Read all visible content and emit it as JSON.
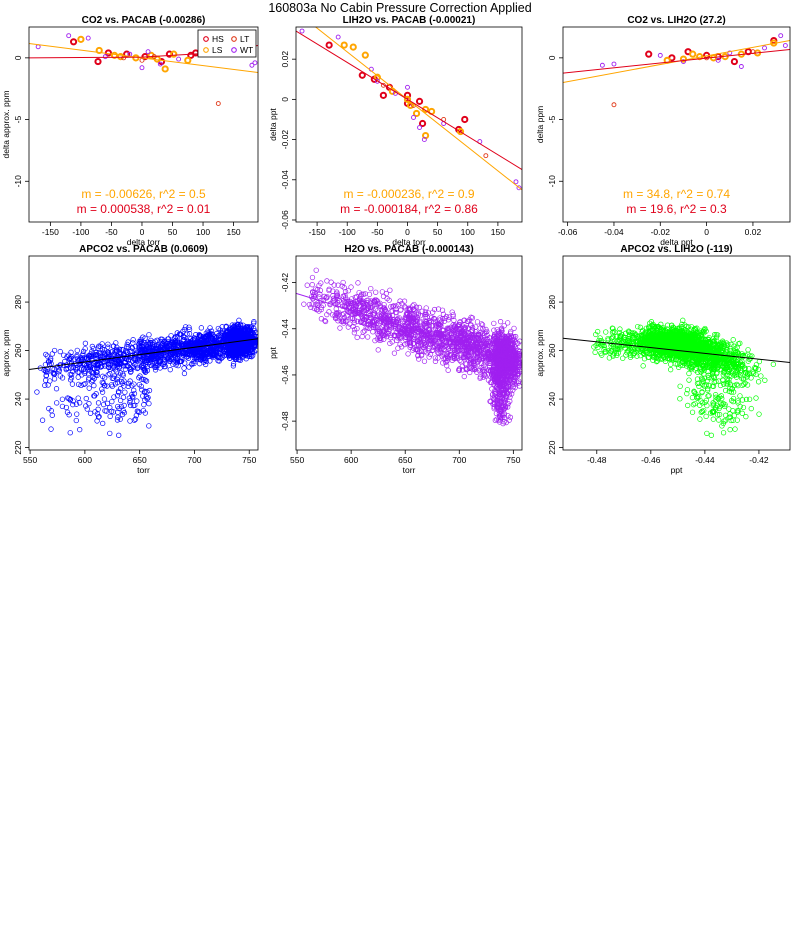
{
  "figure": {
    "title": "160803a   No Cabin Pressure Correction Applied"
  },
  "legend_entries": [
    {
      "label": "HS",
      "color": "#e0001a"
    },
    {
      "label": "LS",
      "color": "#ffa500"
    },
    {
      "label": "LT",
      "color": "#e03a1a"
    },
    {
      "label": "WT",
      "color": "#a020f0"
    }
  ],
  "colors": {
    "HS": "#e0001a",
    "LS": "#ffa500",
    "LT": "#e03a1a",
    "WT": "#a020f0",
    "fit_red": "#e0001a",
    "fit_orange": "#ffa500",
    "blue": "#0000ff",
    "purple": "#a020f0",
    "green": "#00ff00"
  },
  "chart_data": [
    {
      "type": "scatter",
      "title": "CO2 vs. PACAB (-0.00286)",
      "xlabel": "delta torr",
      "ylabel": "delta approx. ppm",
      "xlim": [
        -185,
        190
      ],
      "ylim": [
        -13.3,
        2.5
      ],
      "xticks": [
        -150,
        -100,
        -50,
        0,
        50,
        100,
        150
      ],
      "yticks": [
        0,
        -5,
        -10
      ],
      "legend": "top-right",
      "fit_lines": [
        {
          "color": "fit_orange",
          "x": [
            -185,
            190
          ],
          "y": [
            1.16,
            -1.19
          ]
        },
        {
          "color": "fit_red",
          "curve": true,
          "x": [
            -185,
            -100,
            0,
            100,
            190
          ],
          "y": [
            0.0,
            0.03,
            0.06,
            0.35,
            1.0
          ]
        }
      ],
      "annotations": [
        {
          "text": "m = -0.00626, r^2 = 0.5",
          "color": "fit_orange"
        },
        {
          "text": "m = 0.000538, r^2 = 0.01",
          "color": "fit_red"
        }
      ],
      "series": [
        {
          "name": "HS",
          "color": "HS",
          "bold": true,
          "points": [
            [
              -112,
              1.3
            ],
            [
              -55,
              0.4
            ],
            [
              -25,
              0.3
            ],
            [
              5,
              0.1
            ],
            [
              32,
              -0.3
            ],
            [
              45,
              0.3
            ],
            [
              80,
              0.2
            ],
            [
              88,
              0.4
            ],
            [
              -72,
              -0.3
            ]
          ]
        },
        {
          "name": "LS",
          "color": "LS",
          "bold": true,
          "points": [
            [
              -100,
              1.5
            ],
            [
              -70,
              0.6
            ],
            [
              -45,
              0.2
            ],
            [
              -35,
              0.1
            ],
            [
              -10,
              0.0
            ],
            [
              15,
              0.2
            ],
            [
              25,
              -0.1
            ],
            [
              38,
              -0.9
            ],
            [
              52,
              0.3
            ],
            [
              75,
              -0.2
            ]
          ]
        },
        {
          "name": "LT",
          "color": "LT",
          "bold": false,
          "points": [
            [
              -30,
              0.0
            ],
            [
              0,
              -0.2
            ],
            [
              125,
              -3.7
            ],
            [
              20,
              0.1
            ]
          ]
        },
        {
          "name": "WT",
          "color": "WT",
          "bold": false,
          "points": [
            [
              -170,
              0.9
            ],
            [
              -88,
              1.6
            ],
            [
              -120,
              1.8
            ],
            [
              -60,
              0.1
            ],
            [
              0,
              -0.8
            ],
            [
              30,
              -0.5
            ],
            [
              60,
              -0.1
            ],
            [
              100,
              0.4
            ],
            [
              180,
              -0.6
            ],
            [
              185,
              -0.4
            ],
            [
              -20,
              0.3
            ],
            [
              10,
              0.5
            ]
          ]
        }
      ]
    },
    {
      "type": "scatter",
      "title": "LIH2O vs. PACAB (-0.00021)",
      "xlabel": "delta torr",
      "ylabel": "delta ppt",
      "xlim": [
        -185,
        190
      ],
      "ylim": [
        -0.061,
        0.036
      ],
      "xticks": [
        -150,
        -100,
        -50,
        0,
        50,
        100,
        150
      ],
      "yticks": [
        0.02,
        0.0,
        -0.02,
        -0.04,
        -0.06
      ],
      "fit_lines": [
        {
          "color": "fit_orange",
          "x": [
            -160,
            190
          ],
          "y": [
            0.0378,
            -0.045
          ]
        },
        {
          "color": "fit_red",
          "x": [
            -185,
            190
          ],
          "y": [
            0.034,
            -0.0349
          ]
        }
      ],
      "annotations": [
        {
          "text": "m = -0.000236, r^2 = 0.9",
          "color": "fit_orange"
        },
        {
          "text": "m = -0.000184, r^2 = 0.86",
          "color": "fit_red"
        }
      ],
      "series": [
        {
          "name": "HS",
          "color": "HS",
          "bold": true,
          "points": [
            [
              -130,
              0.027
            ],
            [
              -75,
              0.012
            ],
            [
              -55,
              0.01
            ],
            [
              -30,
              0.006
            ],
            [
              -40,
              0.002
            ],
            [
              0,
              0.002
            ],
            [
              0,
              -0.002
            ],
            [
              25,
              -0.012
            ],
            [
              85,
              -0.015
            ],
            [
              95,
              -0.01
            ],
            [
              20,
              -0.001
            ]
          ]
        },
        {
          "name": "LS",
          "color": "LS",
          "bold": true,
          "points": [
            [
              -105,
              0.027
            ],
            [
              -90,
              0.026
            ],
            [
              -70,
              0.022
            ],
            [
              -50,
              0.011
            ],
            [
              -25,
              0.004
            ],
            [
              0,
              0.0
            ],
            [
              5,
              -0.003
            ],
            [
              30,
              -0.005
            ],
            [
              40,
              -0.006
            ],
            [
              30,
              -0.018
            ],
            [
              88,
              -0.016
            ],
            [
              15,
              -0.007
            ]
          ]
        },
        {
          "name": "LT",
          "color": "LT",
          "bold": false,
          "points": [
            [
              -40,
              0.007
            ],
            [
              10,
              -0.003
            ],
            [
              130,
              -0.028
            ],
            [
              60,
              -0.01
            ]
          ]
        },
        {
          "name": "WT",
          "color": "WT",
          "bold": false,
          "points": [
            [
              -175,
              0.034
            ],
            [
              -115,
              0.031
            ],
            [
              -60,
              0.015
            ],
            [
              -20,
              0.003
            ],
            [
              0,
              0.006
            ],
            [
              10,
              -0.009
            ],
            [
              20,
              -0.014
            ],
            [
              28,
              -0.02
            ],
            [
              60,
              -0.012
            ],
            [
              120,
              -0.021
            ],
            [
              185,
              -0.044
            ],
            [
              180,
              -0.041
            ],
            [
              -50,
              0.009
            ]
          ]
        }
      ]
    },
    {
      "type": "scatter",
      "title": "CO2 vs. LIH2O (27.2)",
      "xlabel": "delta ppt",
      "ylabel": "delta ppm",
      "xlim": [
        -0.062,
        0.036
      ],
      "ylim": [
        -13.3,
        2.5
      ],
      "xticks": [
        -0.06,
        -0.04,
        -0.02,
        0.0,
        0.02
      ],
      "yticks": [
        0,
        -5,
        -10
      ],
      "fit_lines": [
        {
          "color": "fit_orange",
          "x": [
            -0.062,
            0.036
          ],
          "y": [
            -2.0,
            1.41
          ]
        },
        {
          "color": "fit_red",
          "x": [
            -0.062,
            0.036
          ],
          "y": [
            -1.24,
            0.68
          ]
        }
      ],
      "annotations": [
        {
          "text": "m = 34.8, r^2 = 0.74",
          "color": "fit_orange"
        },
        {
          "text": "m = 19.6, r^2 = 0.3",
          "color": "fit_red"
        }
      ],
      "series": [
        {
          "name": "HS",
          "color": "HS",
          "bold": true,
          "points": [
            [
              -0.025,
              0.3
            ],
            [
              -0.008,
              0.5
            ],
            [
              0.0,
              0.2
            ],
            [
              0.005,
              0.1
            ],
            [
              0.012,
              -0.3
            ],
            [
              0.018,
              0.5
            ],
            [
              0.029,
              1.4
            ],
            [
              -0.015,
              0.0
            ]
          ]
        },
        {
          "name": "LS",
          "color": "LS",
          "bold": true,
          "points": [
            [
              -0.017,
              -0.2
            ],
            [
              -0.01,
              -0.1
            ],
            [
              -0.003,
              0.1
            ],
            [
              0.003,
              0.0
            ],
            [
              0.008,
              0.1
            ],
            [
              0.015,
              0.3
            ],
            [
              0.022,
              0.4
            ],
            [
              0.029,
              1.2
            ],
            [
              -0.006,
              0.3
            ]
          ]
        },
        {
          "name": "LT",
          "color": "LT",
          "bold": false,
          "points": [
            [
              -0.04,
              -3.8
            ],
            [
              0.0,
              0.0
            ],
            [
              0.02,
              0.5
            ]
          ]
        },
        {
          "name": "WT",
          "color": "WT",
          "bold": false,
          "points": [
            [
              -0.045,
              -0.6
            ],
            [
              -0.04,
              -0.5
            ],
            [
              -0.02,
              0.2
            ],
            [
              -0.01,
              -0.3
            ],
            [
              0.005,
              -0.2
            ],
            [
              0.015,
              -0.7
            ],
            [
              0.025,
              0.8
            ],
            [
              0.032,
              1.8
            ],
            [
              0.034,
              1.0
            ],
            [
              0.01,
              0.4
            ]
          ]
        }
      ]
    },
    {
      "type": "scatter",
      "title": "APCO2 vs. PACAB (0.0609)",
      "xlabel": "torr",
      "ylabel": "approx. ppm",
      "xlim": [
        549,
        758
      ],
      "ylim": [
        219,
        299
      ],
      "xticks": [
        550,
        600,
        650,
        700,
        750
      ],
      "yticks": [
        220,
        240,
        260,
        280
      ],
      "marker_color": "blue",
      "fit_lines": [
        {
          "color": "#000000",
          "x": [
            549,
            758
          ],
          "y": [
            252.2,
            264.9
          ]
        }
      ],
      "points_summary": "dense time-series cloud; approx. 2300 points",
      "series": []
    },
    {
      "type": "scatter",
      "title": "H2O vs. PACAB (-0.000143)",
      "xlabel": "torr",
      "ylabel": "ppt",
      "xlim": [
        549,
        758
      ],
      "ylim": [
        -0.4925,
        -0.4085
      ],
      "xticks": [
        550,
        600,
        650,
        700,
        750
      ],
      "yticks": [
        -0.42,
        -0.44,
        -0.46,
        -0.48
      ],
      "marker_color": "purple",
      "fit_lines": [
        {
          "color": "#a020f0",
          "x": [
            549,
            758
          ],
          "y": [
            -0.4247,
            -0.4546
          ]
        }
      ],
      "series": []
    },
    {
      "type": "scatter",
      "title": "APCO2 vs. LIH2O (-119)",
      "xlabel": "ppt",
      "ylabel": "approx. ppm",
      "xlim": [
        -0.4925,
        -0.4085
      ],
      "ylim": [
        219,
        299
      ],
      "xticks": [
        -0.48,
        -0.46,
        -0.44,
        -0.42
      ],
      "yticks": [
        220,
        240,
        260,
        280
      ],
      "marker_color": "green",
      "fit_lines": [
        {
          "color": "#000000",
          "x": [
            -0.4925,
            -0.4085
          ],
          "y": [
            265.1,
            255.1
          ]
        }
      ],
      "series": []
    }
  ]
}
